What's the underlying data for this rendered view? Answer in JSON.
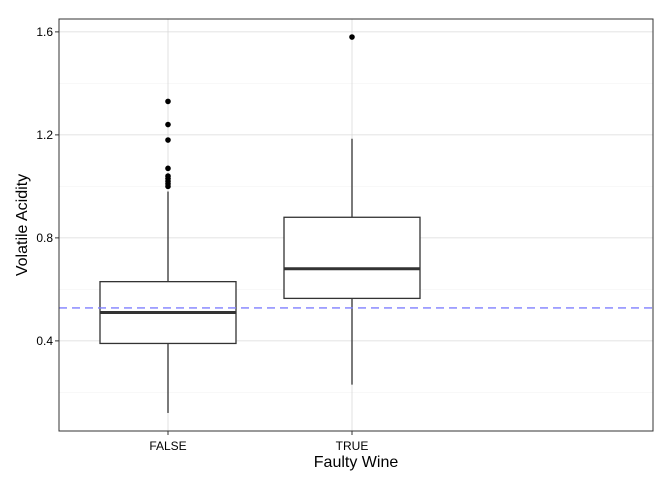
{
  "chart_data": {
    "type": "boxplot",
    "xlabel": "Faulty Wine",
    "ylabel": "Volatile Acidity",
    "categories": [
      "FALSE",
      "TRUE"
    ],
    "ylim": [
      0.05,
      1.65
    ],
    "yticks": [
      0.4,
      0.8,
      1.2,
      1.6
    ],
    "ytick_labels": [
      "0.4",
      "0.8",
      "1.2",
      "1.6"
    ],
    "grid": true,
    "boxes": [
      {
        "category": "FALSE",
        "whisker_low": 0.12,
        "q1": 0.39,
        "median": 0.51,
        "q3": 0.63,
        "whisker_high": 0.98,
        "outliers": [
          1.0,
          1.01,
          1.02,
          1.03,
          1.04,
          1.07,
          1.18,
          1.24,
          1.33
        ]
      },
      {
        "category": "TRUE",
        "whisker_low": 0.23,
        "q1": 0.565,
        "median": 0.68,
        "q3": 0.88,
        "whisker_high": 1.185,
        "outliers": [
          1.58
        ]
      }
    ],
    "reference_line": {
      "value": 0.528,
      "style": "dashed",
      "color": "#7f7fff"
    }
  }
}
